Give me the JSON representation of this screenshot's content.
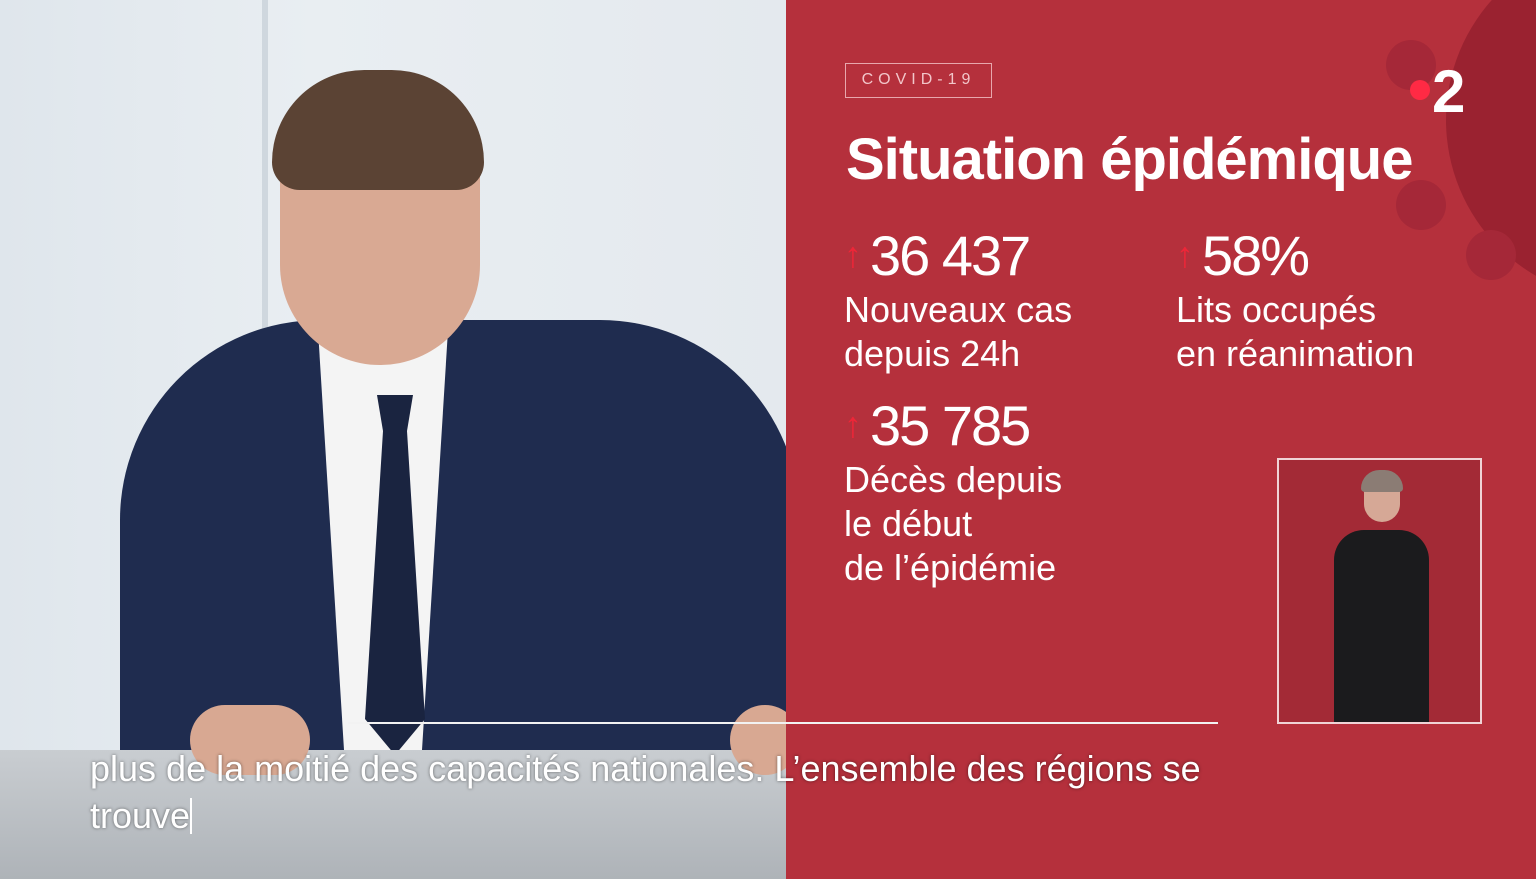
{
  "graphic": {
    "tag": "COVID-19",
    "title": "Situation épidémique",
    "channel_logo": "2",
    "stats": [
      {
        "value": "36 437",
        "trend": "up",
        "label_1": "Nouveaux cas",
        "label_2": "depuis 24h"
      },
      {
        "value": "58%",
        "trend": "up",
        "label_1": "Lits occupés",
        "label_2": "en réanimation"
      },
      {
        "value": "35 785",
        "trend": "up",
        "label_1": "Décès depuis",
        "label_2": "le début",
        "label_3": "de l’épidémie"
      }
    ],
    "colors": {
      "panel": "#b5303c",
      "arrow": "#ee2638",
      "logo_dot": "#ff2a44"
    }
  },
  "subtitles": {
    "line_1": "plus de la moitié des capacités nationales. L’ensemble des régions se",
    "line_2": "trouve"
  }
}
